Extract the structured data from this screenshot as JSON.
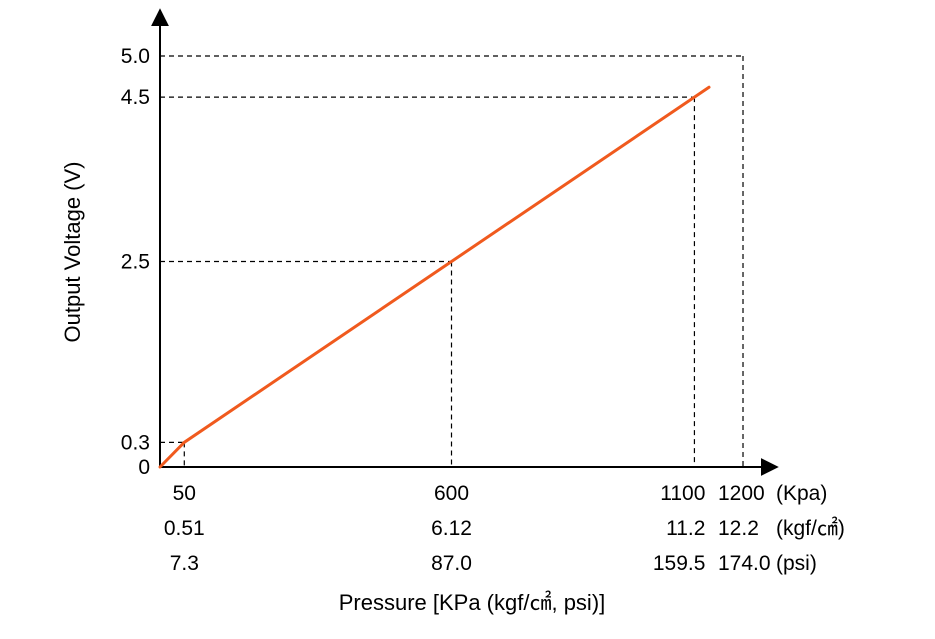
{
  "chart_data": {
    "type": "line",
    "xlabel": "Pressure [KPa (kgf/㎠, psi)]",
    "ylabel": "Output Voltage (V)",
    "xlim": [
      0,
      1250
    ],
    "ylim": [
      0,
      5.3
    ],
    "y_ticks": [
      {
        "value": 0,
        "label": "0"
      },
      {
        "value": 0.3,
        "label": "0.3"
      },
      {
        "value": 2.5,
        "label": "2.5"
      },
      {
        "value": 4.5,
        "label": "4.5"
      },
      {
        "value": 5.0,
        "label": "5.0"
      }
    ],
    "x_ticks": [
      {
        "value": 50,
        "kpa": "50",
        "kgf": "0.51",
        "psi": "7.3"
      },
      {
        "value": 600,
        "kpa": "600",
        "kgf": "6.12",
        "psi": "87.0"
      },
      {
        "value": 1100,
        "kpa": "1100",
        "kgf": "11.2",
        "psi": "159.5"
      },
      {
        "value": 1200,
        "kpa": "1200",
        "kgf": "12.2",
        "psi": "174.0"
      }
    ],
    "unit_labels": {
      "kpa": "(Kpa)",
      "kgf": "(kgf/㎠)",
      "psi": "(psi)"
    },
    "series": [
      {
        "x": [
          0,
          50,
          600,
          1100,
          1130
        ],
        "y": [
          0,
          0.3,
          2.5,
          4.5,
          4.62
        ],
        "color": "#f05a1e"
      }
    ],
    "reference_lines": [
      {
        "x": 50,
        "y": 0.3
      },
      {
        "x": 600,
        "y": 2.5
      },
      {
        "x": 1100,
        "y": 4.5
      },
      {
        "x": 1200,
        "y": 5.0
      }
    ],
    "grid": false
  }
}
